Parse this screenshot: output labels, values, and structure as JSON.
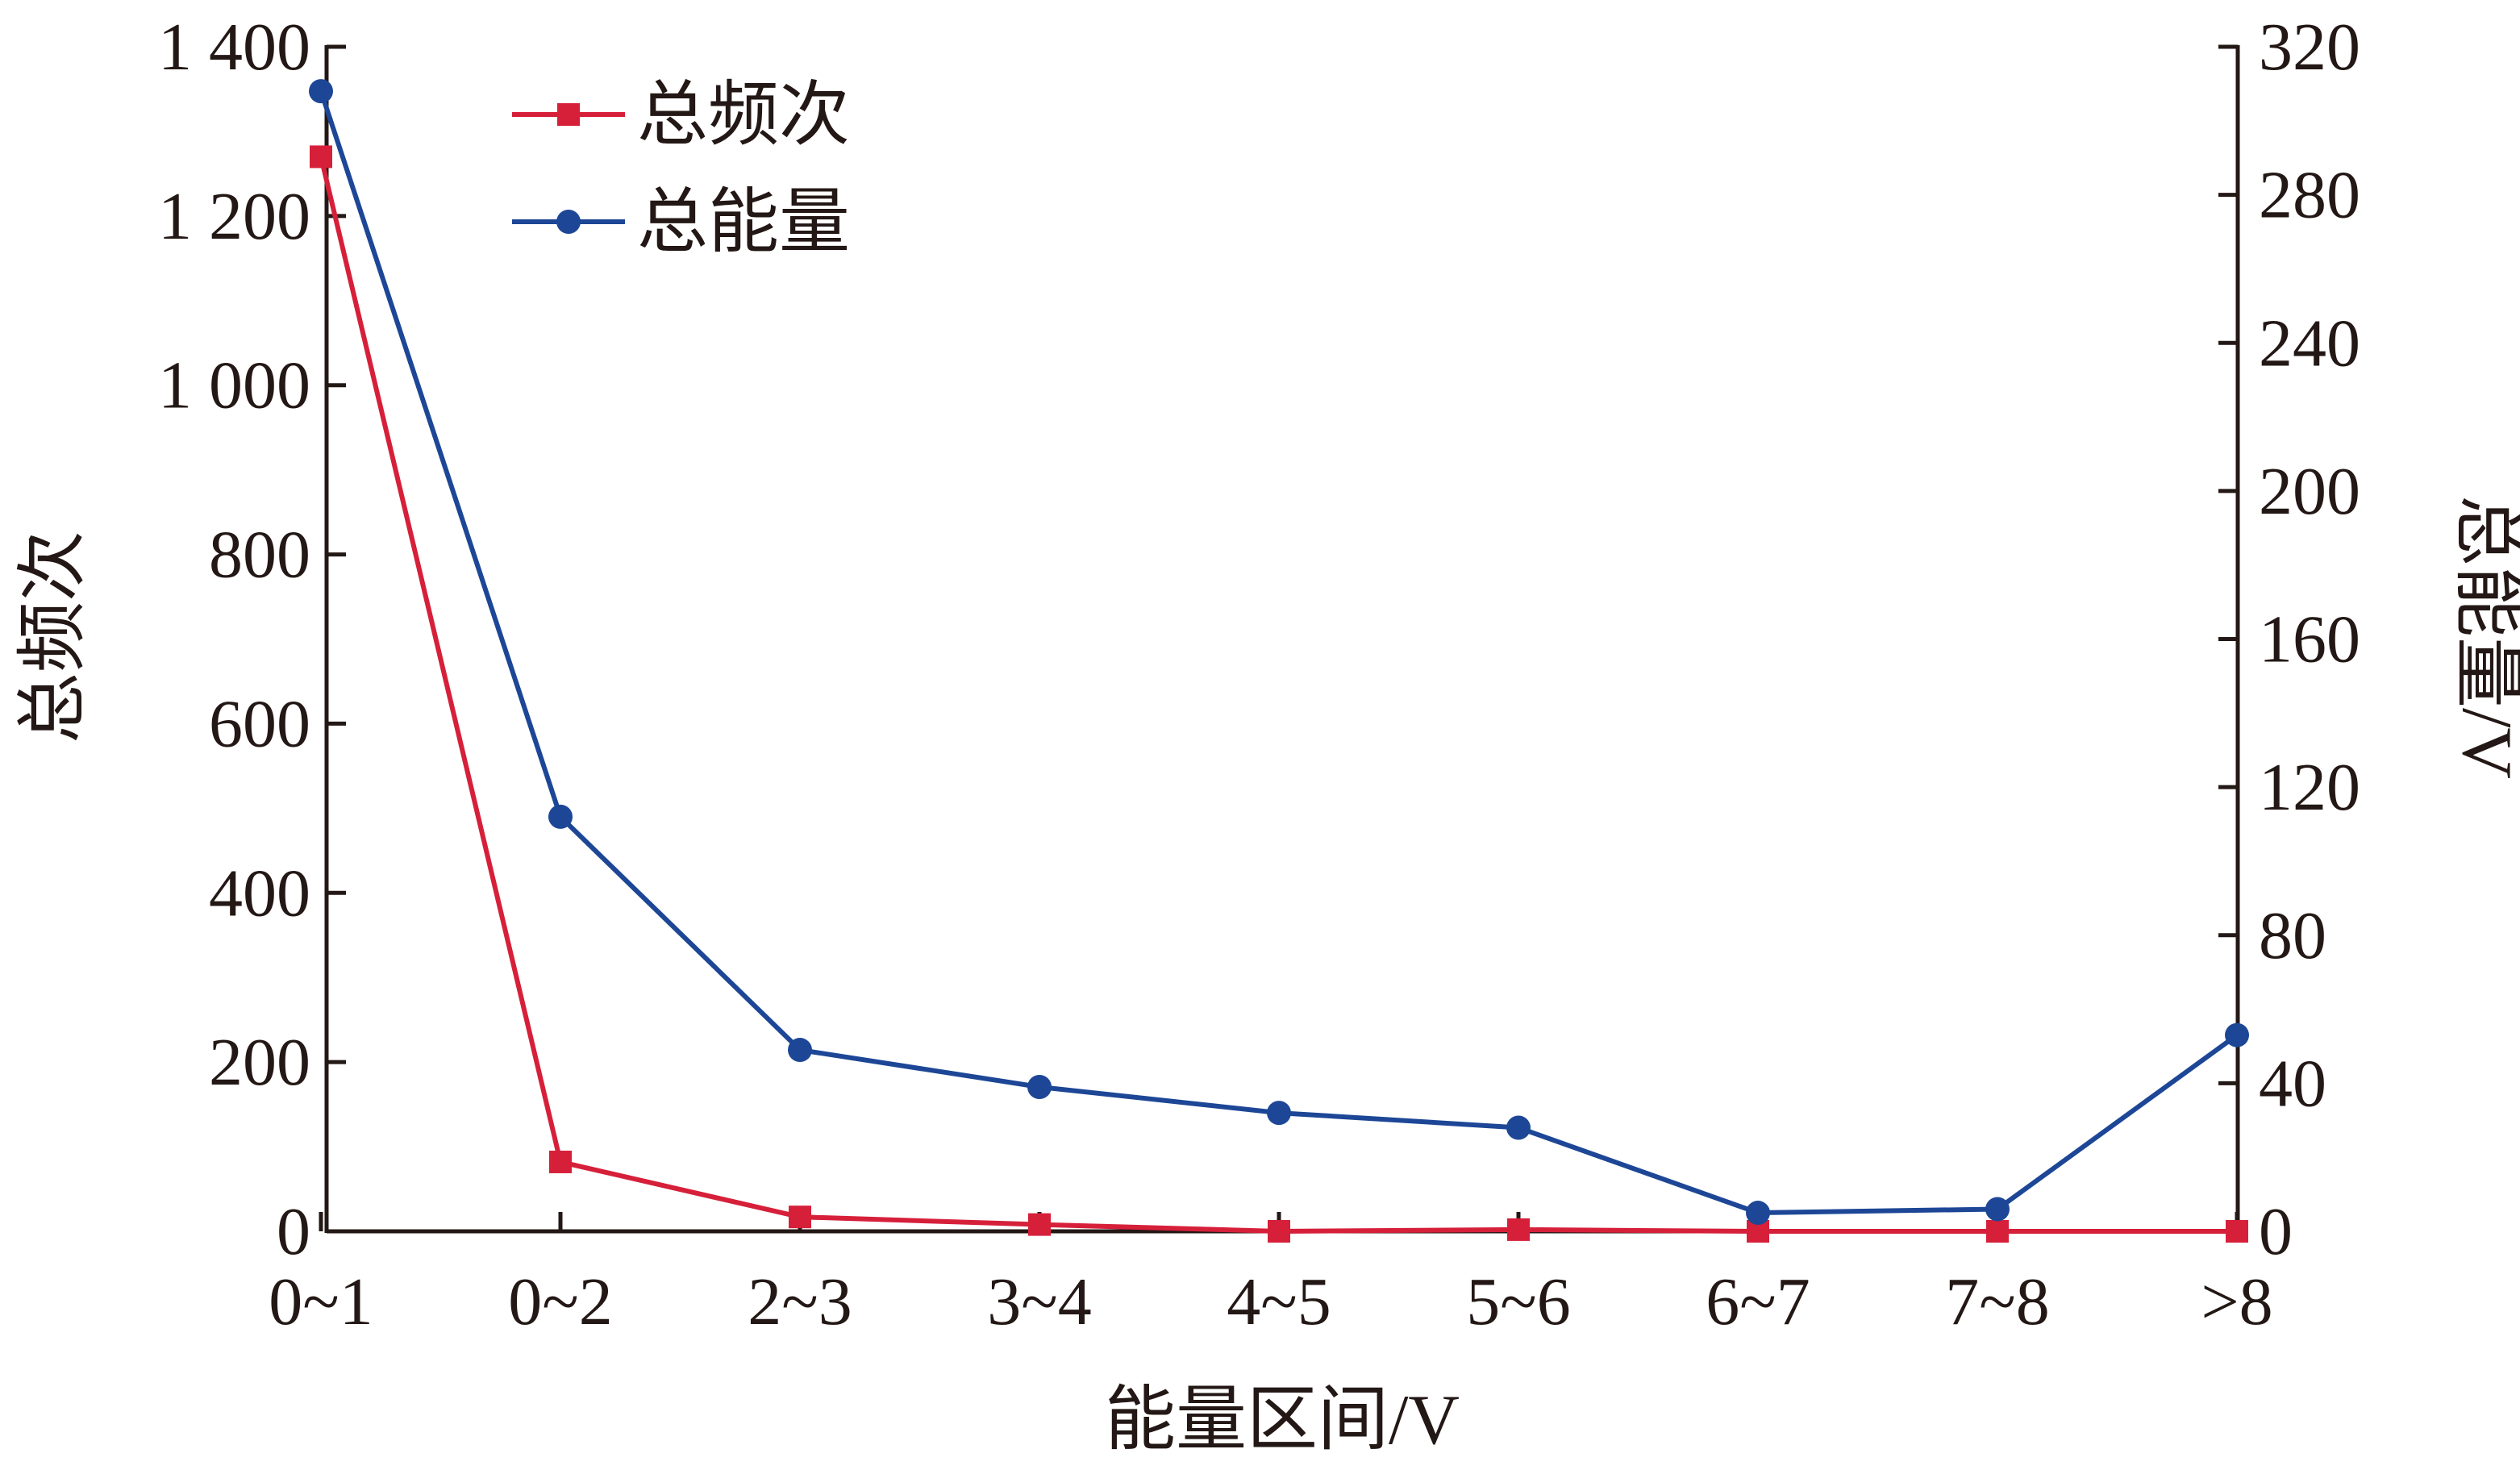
{
  "chart_data": {
    "type": "line",
    "categories": [
      "0~1",
      "0~2",
      "2~3",
      "3~4",
      "4~5",
      "5~6",
      "6~7",
      "7~8",
      ">8"
    ],
    "xlabel": "能量区间/V",
    "y_left": {
      "label": "总频次",
      "ylim": [
        0,
        1400
      ],
      "ticks": [
        0,
        200,
        400,
        600,
        800,
        1000,
        1200,
        1400
      ],
      "tick_labels": [
        "0",
        "200",
        "400",
        "600",
        "800",
        "1 000",
        "1 200",
        "1 400"
      ]
    },
    "y_right": {
      "label": "总能量/V",
      "ylim": [
        0,
        320
      ],
      "ticks": [
        0,
        40,
        80,
        120,
        160,
        200,
        240,
        280,
        320
      ],
      "tick_labels": [
        "0",
        "40",
        "80",
        "120",
        "160",
        "200",
        "240",
        "280",
        "320"
      ]
    },
    "series": [
      {
        "name": "总频次",
        "axis": "left",
        "color": "#d6203a",
        "marker": "square",
        "values": [
          1270,
          82,
          17,
          8,
          0,
          2,
          0,
          0,
          0
        ]
      },
      {
        "name": "总能量",
        "axis": "right",
        "color": "#1d4796",
        "marker": "circle",
        "values": [
          308,
          112,
          49,
          39,
          32,
          28,
          5,
          6,
          53
        ]
      }
    ],
    "legend": "top-left",
    "grid": false
  }
}
